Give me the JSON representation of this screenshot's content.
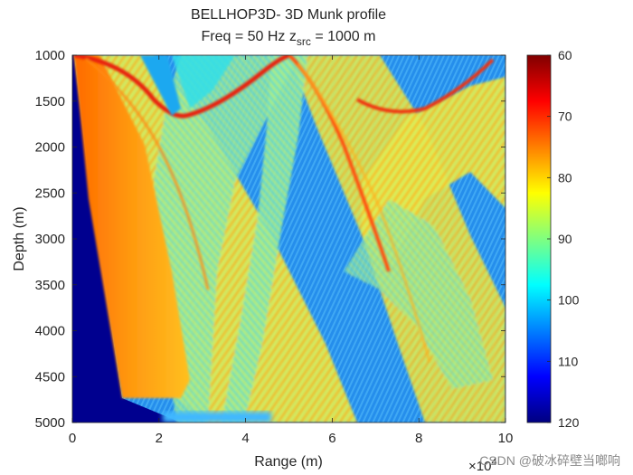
{
  "chart_data": {
    "type": "heatmap",
    "title_line1": "BELLHOP3D- 3D Munk profile",
    "title_line2_prefix": "Freq = 50 Hz    z",
    "title_line2_sub": "src",
    "title_line2_suffix": " = 1000 m",
    "xlabel": "Range (m)",
    "ylabel": "Depth (m)",
    "x_multiplier_base": "×10",
    "x_multiplier_exp": "4",
    "xlim": [
      0,
      10
    ],
    "ylim": [
      1000,
      5000
    ],
    "x_ticks": [
      0,
      2,
      4,
      6,
      8,
      10
    ],
    "y_ticks": [
      1000,
      1500,
      2000,
      2500,
      3000,
      3500,
      4000,
      4500,
      5000
    ],
    "colorbar": {
      "colormap": "jet-reversed",
      "range": [
        60,
        120
      ],
      "ticks": [
        60,
        70,
        80,
        90,
        100,
        110,
        120
      ]
    },
    "grid": false
  },
  "watermark": "CSDN @破冰碎壁当啷响"
}
